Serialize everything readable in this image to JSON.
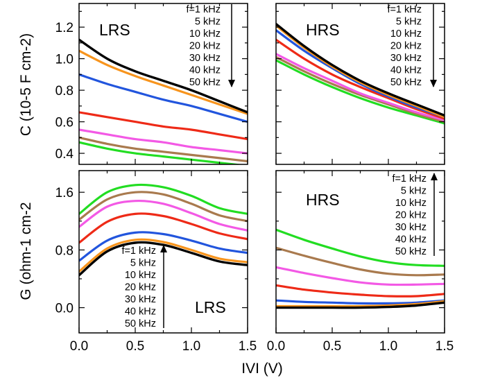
{
  "colors": {
    "1 kHz": "#000000",
    "5 kHz": "#f7941d",
    "10 kHz": "#2255dd",
    "20 kHz": "#ee2a17",
    "30 kHz": "#f359e5",
    "40 kHz": "#a97a4e",
    "50 kHz": "#22dd22"
  },
  "y_axis_capacitance": "C (10-5 F cm-2)",
  "y_axis_conductance": "G (ohm-1 cm-2",
  "x_axis": "IVI (V)",
  "chart_data": [
    {
      "type": "line",
      "panel": "top-left",
      "annotation": "LRS",
      "ylabel": "C (10-5 F cm-2)",
      "xlim": [
        0,
        1.5
      ],
      "ylim": [
        0.33,
        1.35
      ],
      "yticks": [
        0.4,
        0.6,
        0.8,
        1.0,
        1.2
      ],
      "y_tick_labels": [
        "0.4",
        "0.6",
        "0.8",
        "1.0",
        "1.2"
      ],
      "x": [
        0,
        0.25,
        0.5,
        0.75,
        1.0,
        1.25,
        1.5
      ],
      "series": [
        {
          "name": "1 kHz",
          "values": [
            1.12,
            1.0,
            0.92,
            0.86,
            0.8,
            0.73,
            0.66
          ]
        },
        {
          "name": "5 kHz",
          "values": [
            1.05,
            0.96,
            0.89,
            0.83,
            0.77,
            0.71,
            0.65
          ]
        },
        {
          "name": "10 kHz",
          "values": [
            0.9,
            0.84,
            0.79,
            0.74,
            0.7,
            0.65,
            0.6
          ]
        },
        {
          "name": "20 kHz",
          "values": [
            0.66,
            0.63,
            0.6,
            0.57,
            0.55,
            0.52,
            0.49
          ]
        },
        {
          "name": "30 kHz",
          "values": [
            0.55,
            0.52,
            0.49,
            0.47,
            0.44,
            0.42,
            0.4
          ]
        },
        {
          "name": "40 kHz",
          "values": [
            0.5,
            0.46,
            0.43,
            0.41,
            0.39,
            0.37,
            0.35
          ]
        },
        {
          "name": "50 kHz",
          "values": [
            0.47,
            0.43,
            0.4,
            0.38,
            0.36,
            0.34,
            0.32
          ]
        }
      ],
      "legend": {
        "labels": [
          "f=1 kHz",
          "5 kHz",
          "10 kHz",
          "20 kHz",
          "30 kHz",
          "40 kHz",
          "50 kHz"
        ],
        "arrow": "down"
      }
    },
    {
      "type": "line",
      "panel": "top-right",
      "annotation": "HRS",
      "xlim": [
        0,
        1.5
      ],
      "ylim": [
        0.33,
        1.35
      ],
      "x": [
        0,
        0.25,
        0.5,
        0.75,
        1.0,
        1.25,
        1.5
      ],
      "series": [
        {
          "name": "1 kHz",
          "values": [
            1.22,
            1.08,
            0.96,
            0.86,
            0.78,
            0.71,
            0.64
          ]
        },
        {
          "name": "5 kHz",
          "values": [
            1.21,
            1.07,
            0.95,
            0.85,
            0.77,
            0.7,
            0.63
          ]
        },
        {
          "name": "10 kHz",
          "values": [
            1.18,
            1.05,
            0.94,
            0.84,
            0.76,
            0.69,
            0.63
          ]
        },
        {
          "name": "20 kHz",
          "values": [
            1.12,
            1.0,
            0.9,
            0.82,
            0.75,
            0.68,
            0.62
          ]
        },
        {
          "name": "30 kHz",
          "values": [
            1.03,
            0.94,
            0.86,
            0.78,
            0.72,
            0.66,
            0.61
          ]
        },
        {
          "name": "40 kHz",
          "values": [
            1.01,
            0.92,
            0.84,
            0.77,
            0.71,
            0.65,
            0.6
          ]
        },
        {
          "name": "50 kHz",
          "values": [
            0.99,
            0.9,
            0.82,
            0.75,
            0.69,
            0.64,
            0.59
          ]
        }
      ],
      "legend": {
        "labels": [
          "f=1 kHz",
          "5 kHz",
          "10 kHz",
          "20 kHz",
          "30 kHz",
          "40 kHz",
          "50 kHz"
        ],
        "arrow": "down"
      }
    },
    {
      "type": "line",
      "panel": "bottom-left",
      "annotation": "LRS",
      "ylabel": "G (ohm-1 cm-2",
      "xlabel": "IVI (V)",
      "xlim": [
        0,
        1.5
      ],
      "ylim": [
        -0.35,
        1.9
      ],
      "yticks": [
        0.0,
        0.8,
        1.6
      ],
      "y_tick_labels": [
        "0.0",
        "0.8",
        "1.6"
      ],
      "xticks": [
        0,
        0.5,
        1.0,
        1.5
      ],
      "x_tick_labels": [
        "0.0",
        "0.5",
        "1.0",
        "1.5"
      ],
      "x": [
        0,
        0.25,
        0.5,
        0.75,
        1.0,
        1.25,
        1.5
      ],
      "series": [
        {
          "name": "1 kHz",
          "values": [
            0.45,
            0.78,
            0.9,
            0.87,
            0.76,
            0.64,
            0.59
          ]
        },
        {
          "name": "5 kHz",
          "values": [
            0.5,
            0.82,
            0.94,
            0.91,
            0.8,
            0.68,
            0.63
          ]
        },
        {
          "name": "10 kHz",
          "values": [
            0.65,
            0.93,
            1.04,
            1.02,
            0.93,
            0.82,
            0.76
          ]
        },
        {
          "name": "20 kHz",
          "values": [
            0.9,
            1.19,
            1.3,
            1.27,
            1.16,
            1.03,
            0.95
          ]
        },
        {
          "name": "30 kHz",
          "values": [
            1.12,
            1.4,
            1.48,
            1.44,
            1.31,
            1.16,
            1.07
          ]
        },
        {
          "name": "40 kHz",
          "values": [
            1.22,
            1.5,
            1.6,
            1.57,
            1.44,
            1.28,
            1.2
          ]
        },
        {
          "name": "50 kHz",
          "values": [
            1.3,
            1.6,
            1.7,
            1.67,
            1.55,
            1.38,
            1.3
          ]
        }
      ],
      "legend": {
        "labels": [
          "f=1 kHz",
          "5 kHz",
          "10 kHz",
          "20 kHz",
          "30 kHz",
          "40 kHz",
          "50 kHz"
        ],
        "arrow": "up"
      }
    },
    {
      "type": "line",
      "panel": "bottom-right",
      "annotation": "HRS",
      "xlim": [
        0,
        1.5
      ],
      "ylim": [
        -0.35,
        1.9
      ],
      "xticks": [
        0,
        0.5,
        1.0,
        1.5
      ],
      "x_tick_labels": [
        "0.0",
        "0.5",
        "1.0",
        "1.5"
      ],
      "x": [
        0,
        0.25,
        0.5,
        0.75,
        1.0,
        1.25,
        1.5
      ],
      "series": [
        {
          "name": "1 kHz",
          "values": [
            0.0,
            0.0,
            0.0,
            0.0,
            0.01,
            0.03,
            0.07
          ]
        },
        {
          "name": "5 kHz",
          "values": [
            0.02,
            0.02,
            0.02,
            0.02,
            0.03,
            0.05,
            0.09
          ]
        },
        {
          "name": "10 kHz",
          "values": [
            0.1,
            0.08,
            0.07,
            0.06,
            0.06,
            0.07,
            0.1
          ]
        },
        {
          "name": "20 kHz",
          "values": [
            0.31,
            0.25,
            0.21,
            0.18,
            0.16,
            0.16,
            0.19
          ]
        },
        {
          "name": "30 kHz",
          "values": [
            0.56,
            0.48,
            0.41,
            0.35,
            0.32,
            0.32,
            0.33
          ]
        },
        {
          "name": "40 kHz",
          "values": [
            0.83,
            0.72,
            0.62,
            0.53,
            0.47,
            0.45,
            0.46
          ]
        },
        {
          "name": "50 kHz",
          "values": [
            1.08,
            0.94,
            0.82,
            0.71,
            0.63,
            0.59,
            0.58
          ]
        }
      ],
      "legend": {
        "labels": [
          "f=1 kHz",
          "5 kHz",
          "10 kHz",
          "20 kHz",
          "30 kHz",
          "40 kHz",
          "50 kHz"
        ],
        "arrow": "up"
      }
    }
  ]
}
